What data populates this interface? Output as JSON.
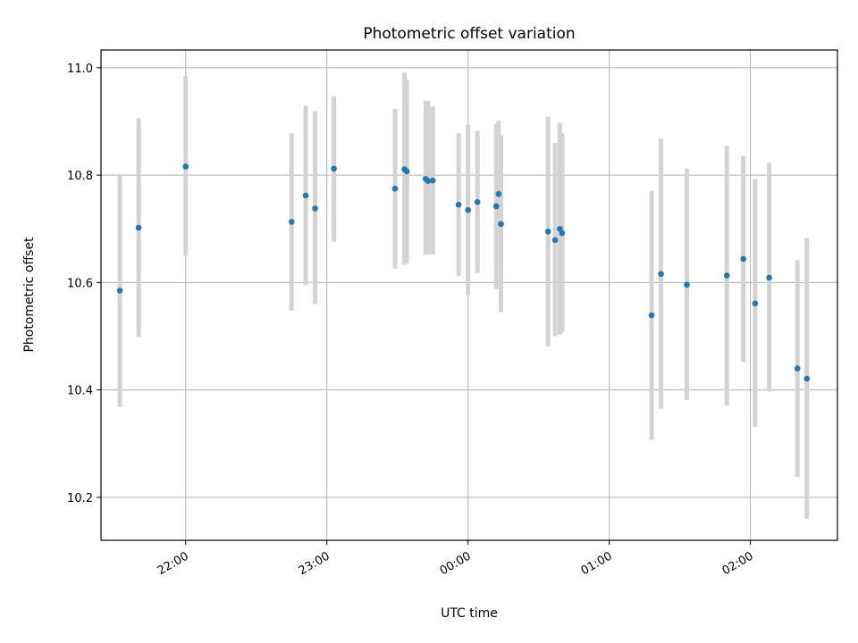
{
  "chart_data": {
    "type": "scatter",
    "title": "Photometric offset variation",
    "xlabel": "UTC time",
    "ylabel": "Photometric offset",
    "x_tick_labels": [
      "22:00",
      "23:00",
      "00:00",
      "01:00",
      "02:00"
    ],
    "x_tick_times": [
      "22:00",
      "23:00",
      "24:00",
      "25:00",
      "26:00"
    ],
    "xlim": [
      "21:24",
      "26:37"
    ],
    "y_ticks": [
      10.2,
      10.4,
      10.6,
      10.8,
      11.0
    ],
    "ylim": [
      10.12,
      11.033
    ],
    "grid": true,
    "colors": {
      "point": "#1f77b4",
      "errorbar": "#d3d3d3",
      "grid": "#b0b0b0"
    },
    "series": [
      {
        "points": [
          {
            "t": "21:32",
            "y": 10.585,
            "lo": 10.368,
            "hi": 10.802
          },
          {
            "t": "21:40",
            "y": 10.702,
            "lo": 10.498,
            "hi": 10.906
          },
          {
            "t": "22:00",
            "y": 10.816,
            "lo": 10.65,
            "hi": 10.985
          },
          {
            "t": "22:45",
            "y": 10.713,
            "lo": 10.548,
            "hi": 10.878
          },
          {
            "t": "22:51",
            "y": 10.762,
            "lo": 10.595,
            "hi": 10.929
          },
          {
            "t": "22:55",
            "y": 10.738,
            "lo": 10.56,
            "hi": 10.919
          },
          {
            "t": "23:03",
            "y": 10.812,
            "lo": 10.676,
            "hi": 10.947
          },
          {
            "t": "23:29",
            "y": 10.775,
            "lo": 10.626,
            "hi": 10.923
          },
          {
            "t": "23:33",
            "y": 10.811,
            "lo": 10.633,
            "hi": 10.991
          },
          {
            "t": "23:34",
            "y": 10.807,
            "lo": 10.636,
            "hi": 10.978
          },
          {
            "t": "23:42",
            "y": 10.793,
            "lo": 10.652,
            "hi": 10.938
          },
          {
            "t": "23:43",
            "y": 10.789,
            "lo": 10.652,
            "hi": 10.938
          },
          {
            "t": "23:45",
            "y": 10.79,
            "lo": 10.652,
            "hi": 10.928
          },
          {
            "t": "23:56",
            "y": 10.745,
            "lo": 10.612,
            "hi": 10.878
          },
          {
            "t": "24:00",
            "y": 10.735,
            "lo": 10.576,
            "hi": 10.894
          },
          {
            "t": "24:04",
            "y": 10.75,
            "lo": 10.618,
            "hi": 10.882
          },
          {
            "t": "24:12",
            "y": 10.742,
            "lo": 10.588,
            "hi": 10.895
          },
          {
            "t": "24:13",
            "y": 10.765,
            "lo": 10.633,
            "hi": 10.901
          },
          {
            "t": "24:14",
            "y": 10.709,
            "lo": 10.545,
            "hi": 10.874
          },
          {
            "t": "24:34",
            "y": 10.695,
            "lo": 10.481,
            "hi": 10.909
          },
          {
            "t": "24:37",
            "y": 10.679,
            "lo": 10.5,
            "hi": 10.86
          },
          {
            "t": "24:39",
            "y": 10.7,
            "lo": 10.503,
            "hi": 10.897
          },
          {
            "t": "24:40",
            "y": 10.692,
            "lo": 10.508,
            "hi": 10.878
          },
          {
            "t": "25:18",
            "y": 10.539,
            "lo": 10.307,
            "hi": 10.771
          },
          {
            "t": "25:22",
            "y": 10.616,
            "lo": 10.365,
            "hi": 10.868
          },
          {
            "t": "25:33",
            "y": 10.596,
            "lo": 10.381,
            "hi": 10.812
          },
          {
            "t": "25:50",
            "y": 10.613,
            "lo": 10.371,
            "hi": 10.855
          },
          {
            "t": "25:57",
            "y": 10.644,
            "lo": 10.452,
            "hi": 10.836
          },
          {
            "t": "26:02",
            "y": 10.561,
            "lo": 10.331,
            "hi": 10.792
          },
          {
            "t": "26:08",
            "y": 10.609,
            "lo": 10.397,
            "hi": 10.823
          },
          {
            "t": "26:20",
            "y": 10.44,
            "lo": 10.238,
            "hi": 10.642
          },
          {
            "t": "26:24",
            "y": 10.421,
            "lo": 10.16,
            "hi": 10.683
          }
        ]
      }
    ]
  }
}
